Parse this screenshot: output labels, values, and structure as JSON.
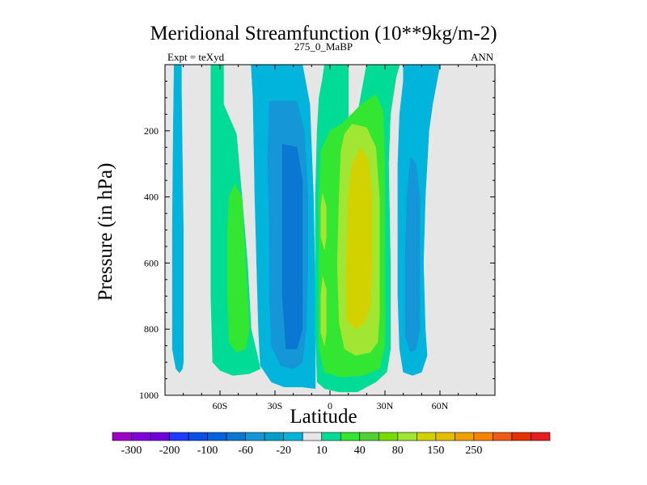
{
  "chart_data": {
    "type": "heatmap",
    "title": "Meridional Streamfunction (10**9kg/m-2)",
    "left_label": "Expt = teXyd",
    "center_label": "275_0_MaBP",
    "right_label": "ANN",
    "xlabel": "Latitude",
    "ylabel": "Pressure (in hPa)",
    "xlim": [
      -90,
      90
    ],
    "ylim": [
      1000,
      0
    ],
    "y_scale": "linear, inverted",
    "grid": false,
    "x_ticks": [
      {
        "value": -60,
        "label": "60S"
      },
      {
        "value": -30,
        "label": "30S"
      },
      {
        "value": 0,
        "label": "0"
      },
      {
        "value": 30,
        "label": "30N"
      },
      {
        "value": 60,
        "label": "60N"
      }
    ],
    "y_ticks": [
      {
        "value": 200,
        "label": "200"
      },
      {
        "value": 400,
        "label": "400"
      },
      {
        "value": 600,
        "label": "600"
      },
      {
        "value": 800,
        "label": "800"
      },
      {
        "value": 1000,
        "label": "1000"
      }
    ],
    "colorbar": {
      "colors": [
        "#a000c8",
        "#8200dc",
        "#6e00dc",
        "#1e3cff",
        "#0a50e6",
        "#0064e1",
        "#0a78d2",
        "#1496d7",
        "#00a0c8",
        "#00b4dc",
        "#e6e6e6",
        "#00dc96",
        "#32e632",
        "#50d232",
        "#78dc00",
        "#a0e632",
        "#d2d200",
        "#e6be00",
        "#f0a000",
        "#fa8200",
        "#f05a14",
        "#e63200",
        "#e61e1e"
      ],
      "labels": [
        "-300",
        "-200",
        "-100",
        "-60",
        "-20",
        "10",
        "40",
        "80",
        "150",
        "250"
      ],
      "label_boundaries": [
        1,
        3,
        5,
        7,
        9,
        11,
        13,
        15,
        17,
        19
      ]
    },
    "regions": [
      {
        "value_class": "-20",
        "color": "#00b4dc",
        "polygon": [
          [
            -85,
            0
          ],
          [
            -81,
            0
          ],
          [
            -81,
            80
          ],
          [
            -80,
            500
          ],
          [
            -80,
            750
          ],
          [
            -80,
            900
          ],
          [
            -80.5,
            920
          ],
          [
            -82,
            932
          ],
          [
            -84,
            920
          ],
          [
            -86,
            860
          ],
          [
            -86,
            500
          ],
          [
            -85.5,
            200
          ]
        ]
      },
      {
        "value_class": "10",
        "color": "#00dc96",
        "polygon": [
          [
            -65,
            0
          ],
          [
            -58,
            0
          ],
          [
            -58,
            120
          ],
          [
            -51,
            210
          ],
          [
            -48,
            400
          ],
          [
            -45,
            600
          ],
          [
            -43,
            800
          ],
          [
            -40,
            870
          ],
          [
            -38,
            920
          ],
          [
            -44,
            935
          ],
          [
            -53,
            940
          ],
          [
            -60,
            925
          ],
          [
            -64,
            900
          ],
          [
            -65,
            700
          ],
          [
            -65,
            500
          ],
          [
            -65,
            300
          ],
          [
            -65,
            100
          ]
        ]
      },
      {
        "value_class": "40",
        "color": "#32e632",
        "polygon": [
          [
            -52,
            360
          ],
          [
            -48,
            400
          ],
          [
            -46,
            600
          ],
          [
            -44,
            800
          ],
          [
            -46,
            860
          ],
          [
            -51,
            870
          ],
          [
            -55,
            840
          ],
          [
            -56,
            700
          ],
          [
            -56,
            500
          ],
          [
            -55,
            400
          ]
        ]
      },
      {
        "value_class": "-20",
        "color": "#00b4dc",
        "polygon": [
          [
            -43,
            0
          ],
          [
            -15,
            0
          ],
          [
            -11,
            120
          ],
          [
            -9,
            400
          ],
          [
            -8,
            700
          ],
          [
            -8,
            980
          ],
          [
            -15,
            975
          ],
          [
            -25,
            975
          ],
          [
            -32,
            960
          ],
          [
            -38,
            910
          ],
          [
            -39,
            800
          ],
          [
            -40,
            600
          ],
          [
            -41,
            400
          ],
          [
            -42,
            100
          ]
        ]
      },
      {
        "value_class": "-60",
        "color": "#1496d7",
        "polygon": [
          [
            -33,
            110
          ],
          [
            -18,
            110
          ],
          [
            -14,
            200
          ],
          [
            -12,
            400
          ],
          [
            -12,
            600
          ],
          [
            -13,
            800
          ],
          [
            -15,
            900
          ],
          [
            -20,
            920
          ],
          [
            -27,
            910
          ],
          [
            -32,
            850
          ],
          [
            -33,
            700
          ],
          [
            -33,
            500
          ],
          [
            -34,
            300
          ]
        ]
      },
      {
        "value_class": "-100",
        "color": "#0a78d2",
        "polygon": [
          [
            -26,
            240
          ],
          [
            -18,
            250
          ],
          [
            -15,
            350
          ],
          [
            -15,
            600
          ],
          [
            -15,
            800
          ],
          [
            -18,
            860
          ],
          [
            -24,
            860
          ],
          [
            -26,
            700
          ],
          [
            -26,
            500
          ]
        ]
      },
      {
        "value_class": "10",
        "color": "#00dc96",
        "polygon": [
          [
            -3,
            0
          ],
          [
            10,
            0
          ],
          [
            10,
            180
          ],
          [
            14,
            190
          ],
          [
            16,
            120
          ],
          [
            20,
            0
          ],
          [
            38,
            0
          ],
          [
            36,
            40
          ],
          [
            33,
            150
          ],
          [
            32,
            300
          ],
          [
            33,
            600
          ],
          [
            33,
            860
          ],
          [
            31,
            930
          ],
          [
            25,
            960
          ],
          [
            15,
            990
          ],
          [
            5,
            990
          ],
          [
            -3,
            980
          ],
          [
            -7,
            960
          ],
          [
            -8,
            800
          ],
          [
            -8,
            600
          ],
          [
            -8,
            400
          ],
          [
            -7,
            200
          ],
          [
            -6,
            100
          ],
          [
            -4,
            40
          ]
        ]
      },
      {
        "value_class": "40",
        "color": "#32e632",
        "polygon": [
          [
            10,
            160
          ],
          [
            17,
            120
          ],
          [
            25,
            90
          ],
          [
            29,
            140
          ],
          [
            30,
            300
          ],
          [
            30,
            600
          ],
          [
            30,
            850
          ],
          [
            27,
            920
          ],
          [
            18,
            940
          ],
          [
            6,
            945
          ],
          [
            -3,
            930
          ],
          [
            -6,
            860
          ],
          [
            -6,
            600
          ],
          [
            -6,
            400
          ],
          [
            -5,
            260
          ],
          [
            0,
            200
          ],
          [
            6,
            180
          ]
        ]
      },
      {
        "value_class": "80",
        "color": "#a0e632",
        "polygon": [
          [
            12,
            180
          ],
          [
            20,
            190
          ],
          [
            25,
            250
          ],
          [
            27,
            400
          ],
          [
            27,
            600
          ],
          [
            27,
            760
          ],
          [
            26,
            840
          ],
          [
            22,
            870
          ],
          [
            14,
            880
          ],
          [
            8,
            860
          ],
          [
            5,
            780
          ],
          [
            4,
            600
          ],
          [
            5,
            400
          ],
          [
            6,
            260
          ],
          [
            8,
            210
          ]
        ]
      },
      {
        "value_class": "80",
        "color": "#a0e632",
        "polygon": [
          [
            -4,
            390
          ],
          [
            -2,
            430
          ],
          [
            -2,
            520
          ],
          [
            -3,
            560
          ],
          [
            -5,
            520
          ],
          [
            -5,
            430
          ]
        ]
      },
      {
        "value_class": "80",
        "color": "#a0e632",
        "polygon": [
          [
            -4,
            640
          ],
          [
            -2,
            680
          ],
          [
            -2,
            810
          ],
          [
            -3,
            850
          ],
          [
            -5,
            810
          ],
          [
            -5,
            700
          ]
        ]
      },
      {
        "value_class": "150",
        "color": "#d2d200",
        "polygon": [
          [
            17,
            250
          ],
          [
            21,
            290
          ],
          [
            23,
            400
          ],
          [
            23,
            600
          ],
          [
            22,
            730
          ],
          [
            19,
            780
          ],
          [
            14,
            800
          ],
          [
            9,
            770
          ],
          [
            9,
            600
          ],
          [
            10,
            400
          ],
          [
            12,
            300
          ]
        ]
      },
      {
        "value_class": "-20",
        "color": "#00b4dc",
        "polygon": [
          [
            40,
            0
          ],
          [
            60,
            0
          ],
          [
            58,
            60
          ],
          [
            56,
            120
          ],
          [
            54,
            200
          ],
          [
            52,
            400
          ],
          [
            51,
            600
          ],
          [
            52,
            800
          ],
          [
            53,
            880
          ],
          [
            50,
            930
          ],
          [
            45,
            940
          ],
          [
            40,
            930
          ],
          [
            38,
            860
          ],
          [
            37,
            700
          ],
          [
            37,
            500
          ],
          [
            37,
            300
          ],
          [
            38,
            150
          ],
          [
            40,
            50
          ]
        ]
      },
      {
        "value_class": "-60",
        "color": "#1496d7",
        "polygon": [
          [
            44,
            280
          ],
          [
            47,
            300
          ],
          [
            49,
            400
          ],
          [
            49,
            600
          ],
          [
            49,
            800
          ],
          [
            47,
            860
          ],
          [
            44,
            870
          ],
          [
            41,
            820
          ],
          [
            41,
            600
          ],
          [
            42,
            400
          ]
        ]
      }
    ]
  }
}
